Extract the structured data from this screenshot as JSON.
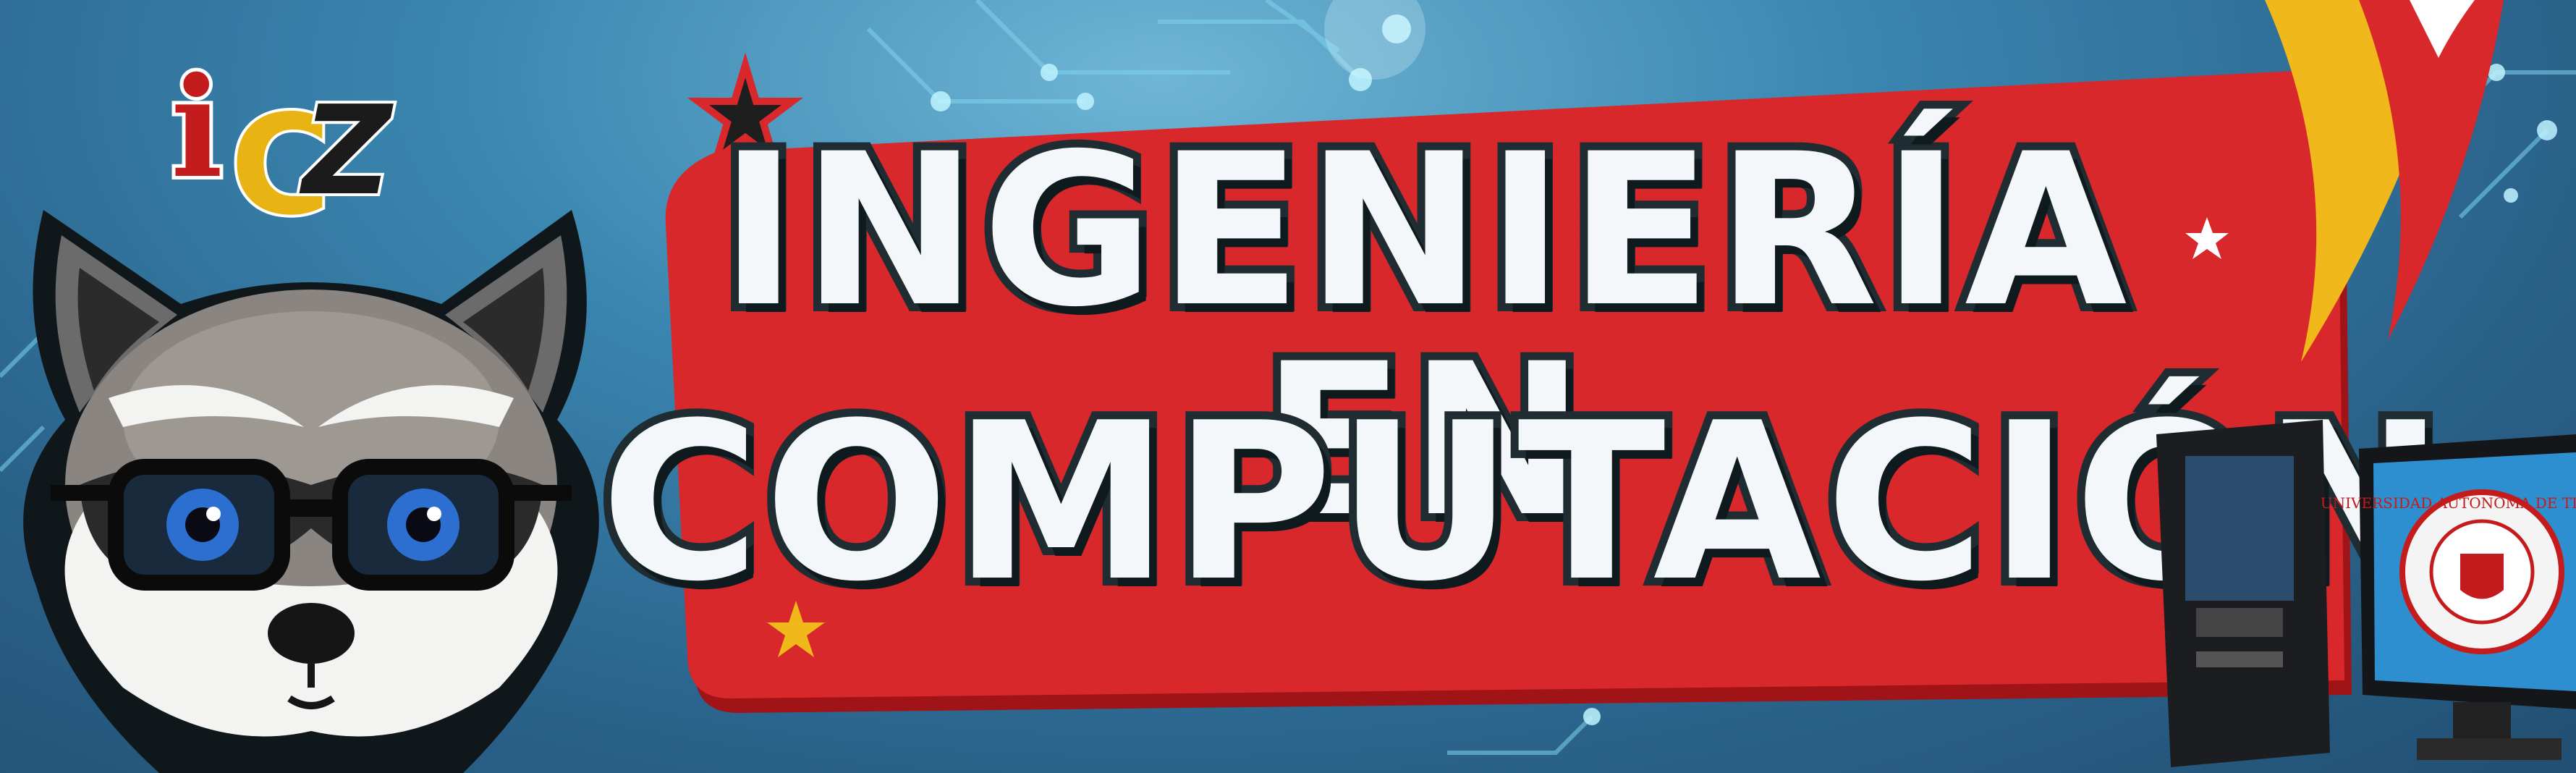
{
  "banner": {
    "title_line_1": "INGENIERÍA EN",
    "title_line_2": "COMPUTACIÓN",
    "logo_letters": {
      "i": "i",
      "c": "C",
      "z": "Z"
    },
    "seal_text": "UNIVERSIDAD AUTONOMA DE TLAXCALA"
  },
  "colors": {
    "background": "#3a86b0",
    "red_panel": "#d9282b",
    "title_fill": "#f4f7fa",
    "title_outline": "#1f2d33",
    "accent_yellow": "#f0b81a"
  }
}
